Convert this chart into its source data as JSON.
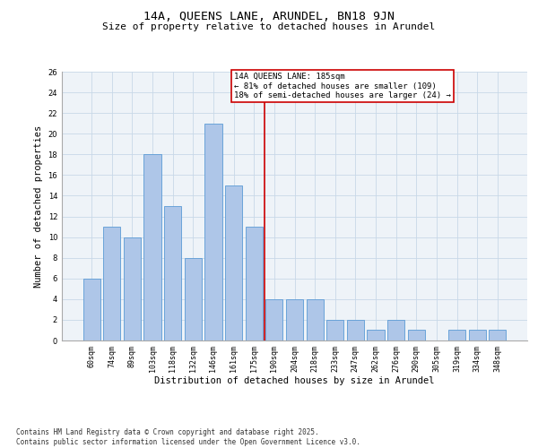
{
  "title": "14A, QUEENS LANE, ARUNDEL, BN18 9JN",
  "subtitle": "Size of property relative to detached houses in Arundel",
  "xlabel": "Distribution of detached houses by size in Arundel",
  "ylabel": "Number of detached properties",
  "categories": [
    "60sqm",
    "74sqm",
    "89sqm",
    "103sqm",
    "118sqm",
    "132sqm",
    "146sqm",
    "161sqm",
    "175sqm",
    "190sqm",
    "204sqm",
    "218sqm",
    "233sqm",
    "247sqm",
    "262sqm",
    "276sqm",
    "290sqm",
    "305sqm",
    "319sqm",
    "334sqm",
    "348sqm"
  ],
  "values": [
    6,
    11,
    10,
    18,
    13,
    8,
    21,
    15,
    11,
    4,
    4,
    4,
    2,
    2,
    1,
    2,
    1,
    0,
    1,
    1,
    1
  ],
  "bar_color": "#aec6e8",
  "bar_edgecolor": "#5b9bd5",
  "vline_x": 8.5,
  "vline_color": "#cc0000",
  "annotation_text": "14A QUEENS LANE: 185sqm\n← 81% of detached houses are smaller (109)\n18% of semi-detached houses are larger (24) →",
  "annotation_box_color": "#cc0000",
  "ylim": [
    0,
    26
  ],
  "yticks": [
    0,
    2,
    4,
    6,
    8,
    10,
    12,
    14,
    16,
    18,
    20,
    22,
    24,
    26
  ],
  "grid_color": "#c8d8e8",
  "background_color": "#eef3f8",
  "footer": "Contains HM Land Registry data © Crown copyright and database right 2025.\nContains public sector information licensed under the Open Government Licence v3.0.",
  "title_fontsize": 9.5,
  "subtitle_fontsize": 8,
  "axis_label_fontsize": 7.5,
  "tick_fontsize": 6,
  "annotation_fontsize": 6.5,
  "footer_fontsize": 5.5
}
